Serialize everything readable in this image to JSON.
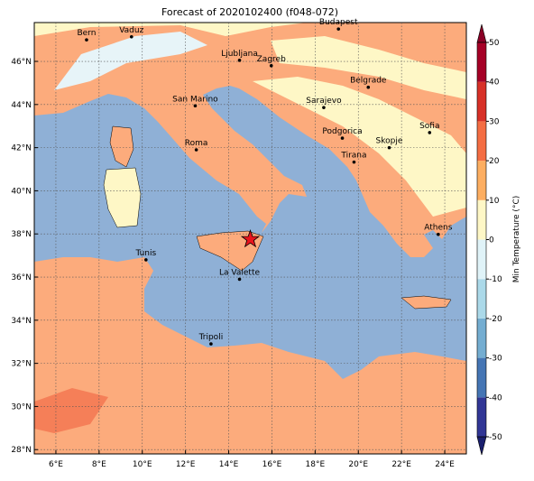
{
  "title": "Forecast of 2020102400 (f048-072)",
  "map": {
    "lon_range": [
      5,
      25
    ],
    "lat_range": [
      27.8,
      47.8
    ],
    "lon_ticks": [
      {
        "value": 6,
        "label": "6°E"
      },
      {
        "value": 8,
        "label": "8°E"
      },
      {
        "value": 10,
        "label": "10°E"
      },
      {
        "value": 12,
        "label": "12°E"
      },
      {
        "value": 14,
        "label": "14°E"
      },
      {
        "value": 16,
        "label": "16°E"
      },
      {
        "value": 18,
        "label": "18°E"
      },
      {
        "value": 20,
        "label": "20°E"
      },
      {
        "value": 22,
        "label": "22°E"
      },
      {
        "value": 24,
        "label": "24°E"
      }
    ],
    "lat_ticks": [
      {
        "value": 28,
        "label": "28°N"
      },
      {
        "value": 30,
        "label": "30°N"
      },
      {
        "value": 32,
        "label": "32°N"
      },
      {
        "value": 34,
        "label": "34°N"
      },
      {
        "value": 36,
        "label": "36°N"
      },
      {
        "value": 38,
        "label": "38°N"
      },
      {
        "value": 40,
        "label": "40°N"
      },
      {
        "value": 42,
        "label": "42°N"
      },
      {
        "value": 44,
        "label": "44°N"
      },
      {
        "value": 46,
        "label": "46°N"
      }
    ],
    "cities": [
      {
        "name": "Bern",
        "lon": 7.42,
        "lat": 47.0
      },
      {
        "name": "Vaduz",
        "lon": 9.5,
        "lat": 47.14
      },
      {
        "name": "Budapest",
        "lon": 19.08,
        "lat": 47.5
      },
      {
        "name": "Ljubljana",
        "lon": 14.5,
        "lat": 46.05
      },
      {
        "name": "Zagreb",
        "lon": 15.97,
        "lat": 45.8
      },
      {
        "name": "Belgrade",
        "lon": 20.46,
        "lat": 44.8
      },
      {
        "name": "San Marino",
        "lon": 12.45,
        "lat": 43.94
      },
      {
        "name": "Sarajevo",
        "lon": 18.4,
        "lat": 43.86
      },
      {
        "name": "Sofia",
        "lon": 23.3,
        "lat": 42.7
      },
      {
        "name": "Podgorica",
        "lon": 19.26,
        "lat": 42.44
      },
      {
        "name": "Skopje",
        "lon": 21.43,
        "lat": 42.0
      },
      {
        "name": "Roma",
        "lon": 12.5,
        "lat": 41.9
      },
      {
        "name": "Tirana",
        "lon": 19.8,
        "lat": 41.33
      },
      {
        "name": "Athens",
        "lon": 23.7,
        "lat": 37.98
      },
      {
        "name": "Tunis",
        "lon": 10.17,
        "lat": 36.8
      },
      {
        "name": "La Valette",
        "lon": 14.5,
        "lat": 35.9
      },
      {
        "name": "Tripoli",
        "lon": 13.18,
        "lat": 32.9
      }
    ],
    "marker": {
      "lon": 15.0,
      "lat": 37.75,
      "color": "#e8141c"
    }
  },
  "colorbar": {
    "label": "Min Temperature (°C)",
    "ticks": [
      -50,
      -40,
      -30,
      -20,
      -10,
      0,
      10,
      20,
      30,
      40,
      50
    ],
    "colors": [
      "#313695",
      "#4575b4",
      "#74add1",
      "#abd9e9",
      "#e0f3f8",
      "#fef7c6",
      "#fdae61",
      "#f46d43",
      "#d73027",
      "#a50026"
    ],
    "under_color": "#1a1f6e",
    "over_color": "#8a0026"
  }
}
